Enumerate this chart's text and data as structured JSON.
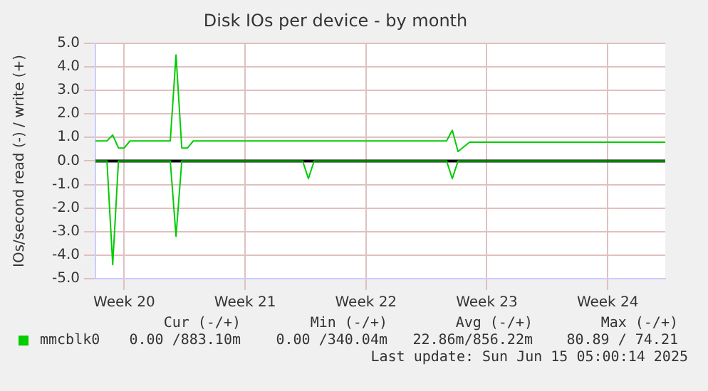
{
  "chart_data": {
    "type": "line",
    "title": "Disk IOs per device - by month",
    "ylabel": "IOs/second read (-) / write (+)",
    "categories": [
      null,
      null,
      null,
      null,
      null,
      "Week 20",
      null,
      null,
      null,
      null,
      null,
      null,
      null,
      null,
      null,
      null,
      null,
      null,
      null,
      null,
      null,
      null,
      null,
      null,
      null,
      null,
      "Week 21",
      null,
      null,
      null,
      null,
      null,
      null,
      null,
      null,
      null,
      null,
      null,
      null,
      null,
      null,
      null,
      null,
      null,
      null,
      null,
      null,
      "Week 22",
      null,
      null,
      null,
      null,
      null,
      null,
      null,
      null,
      null,
      null,
      null,
      null,
      null,
      null,
      null,
      null,
      null,
      null,
      null,
      null,
      "Week 23",
      null,
      null,
      null,
      null,
      null,
      null,
      null,
      null,
      null,
      null,
      null,
      null,
      null,
      null,
      null,
      null,
      null,
      null,
      null,
      null,
      "Week 24",
      null,
      null,
      null,
      null,
      null,
      null,
      null,
      null,
      null,
      null
    ],
    "ylim": [
      -5,
      5
    ],
    "yticks": [
      {
        "value": -5,
        "label": "-5.0"
      },
      {
        "value": -4,
        "label": "-4.0"
      },
      {
        "value": -3,
        "label": "-3.0"
      },
      {
        "value": -2,
        "label": "-2.0"
      },
      {
        "value": -1,
        "label": "-1.0"
      },
      {
        "value": 0,
        "label": "0.0"
      },
      {
        "value": 1,
        "label": "1.0"
      },
      {
        "value": 2,
        "label": "2.0"
      },
      {
        "value": 3,
        "label": "3.0"
      },
      {
        "value": 4,
        "label": "4.0"
      },
      {
        "value": 5,
        "label": "5.0"
      }
    ],
    "grid": true,
    "legend": "bottom",
    "marker": "none",
    "line_style": "solid",
    "ref_lines": [
      {
        "axis": "y",
        "value": 0,
        "color": "#000000"
      }
    ],
    "series": [
      {
        "name": "mmcblk0",
        "color": "#00cc00",
        "values": [
          0.85,
          0.85,
          0.85,
          1.1,
          0.55,
          0.55,
          0.85,
          0.85,
          0.85,
          0.85,
          0.85,
          0.85,
          0.85,
          0.85,
          4.5,
          0.55,
          0.55,
          0.85,
          0.85,
          0.85,
          0.85,
          0.85,
          0.85,
          0.85,
          0.85,
          0.85,
          0.85,
          0.85,
          0.85,
          0.85,
          0.85,
          0.85,
          0.85,
          0.85,
          0.85,
          0.85,
          0.85,
          0.85,
          0.85,
          0.85,
          0.85,
          0.85,
          0.85,
          0.85,
          0.85,
          0.85,
          0.85,
          0.85,
          0.85,
          0.85,
          0.85,
          0.85,
          0.85,
          0.85,
          0.85,
          0.85,
          0.85,
          0.85,
          0.85,
          0.85,
          0.85,
          0.85,
          1.3,
          0.4,
          0.6,
          0.8,
          0.8,
          0.8,
          0.8,
          0.8,
          0.8,
          0.8,
          0.8,
          0.8,
          0.8,
          0.8,
          0.8,
          0.8,
          0.8,
          0.8,
          0.8,
          0.8,
          0.8,
          0.8,
          0.8,
          0.8,
          0.8,
          0.8,
          0.8,
          0.8,
          0.8,
          0.8,
          0.8,
          0.8,
          0.8,
          0.8,
          0.8,
          0.8,
          0.8,
          0.8
        ]
      },
      {
        "color": "#00cc00",
        "values": [
          0,
          0,
          0,
          -4.4,
          0,
          0,
          0,
          0,
          0,
          0,
          0,
          0,
          0,
          0,
          -3.2,
          0,
          0,
          0,
          0,
          0,
          0,
          0,
          0,
          0,
          0,
          0,
          0,
          0,
          0,
          0,
          0,
          0,
          0,
          0,
          0,
          0,
          0,
          -0.75,
          0,
          0,
          0,
          0,
          0,
          0,
          0,
          0,
          0,
          0,
          0,
          0,
          0,
          0,
          0,
          0,
          0,
          0,
          0,
          0,
          0,
          0,
          0,
          0,
          -0.75,
          0,
          0,
          0,
          0,
          0,
          0,
          0,
          0,
          0,
          0,
          0,
          0,
          0,
          0,
          0,
          0,
          0,
          0,
          0,
          0,
          0,
          0,
          0,
          0,
          0,
          0,
          0,
          0,
          0,
          0,
          0,
          0,
          0,
          0,
          0,
          0,
          0
        ]
      }
    ],
    "annotations": [
      "Cur (-/+)",
      "Min (-/+)",
      "Avg (-/+)",
      "Max (-/+)",
      "0.00 /883.10m",
      "0.00 /340.04m",
      "22.86m/856.22m",
      "80.89 / 74.21",
      "Last update: Sun Jun 15 05:00:14 2025"
    ]
  }
}
